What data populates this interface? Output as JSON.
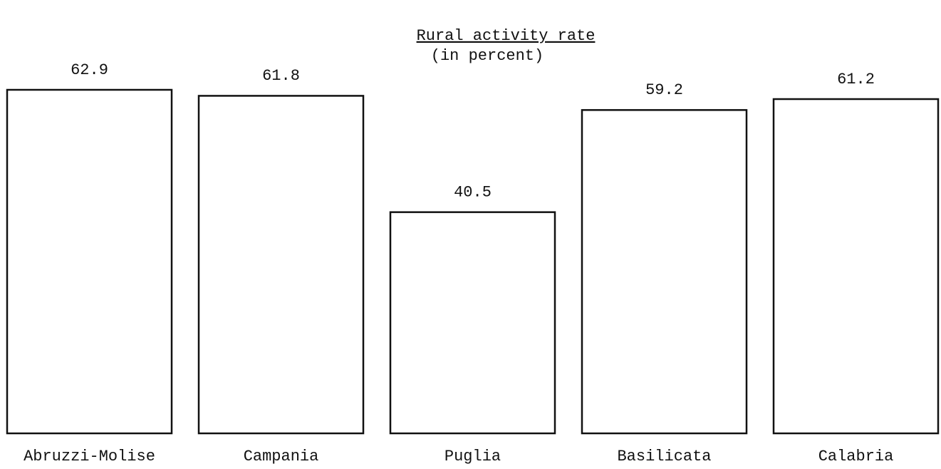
{
  "chart_data": {
    "type": "bar",
    "title": "Rural activity rate",
    "subtitle": "(in percent)",
    "categories": [
      "Abruzzi-Molise",
      "Campania",
      "Puglia",
      "Basilicata",
      "Calabria"
    ],
    "values": [
      62.9,
      61.8,
      40.5,
      59.2,
      61.2
    ],
    "color": "#ffffff"
  }
}
